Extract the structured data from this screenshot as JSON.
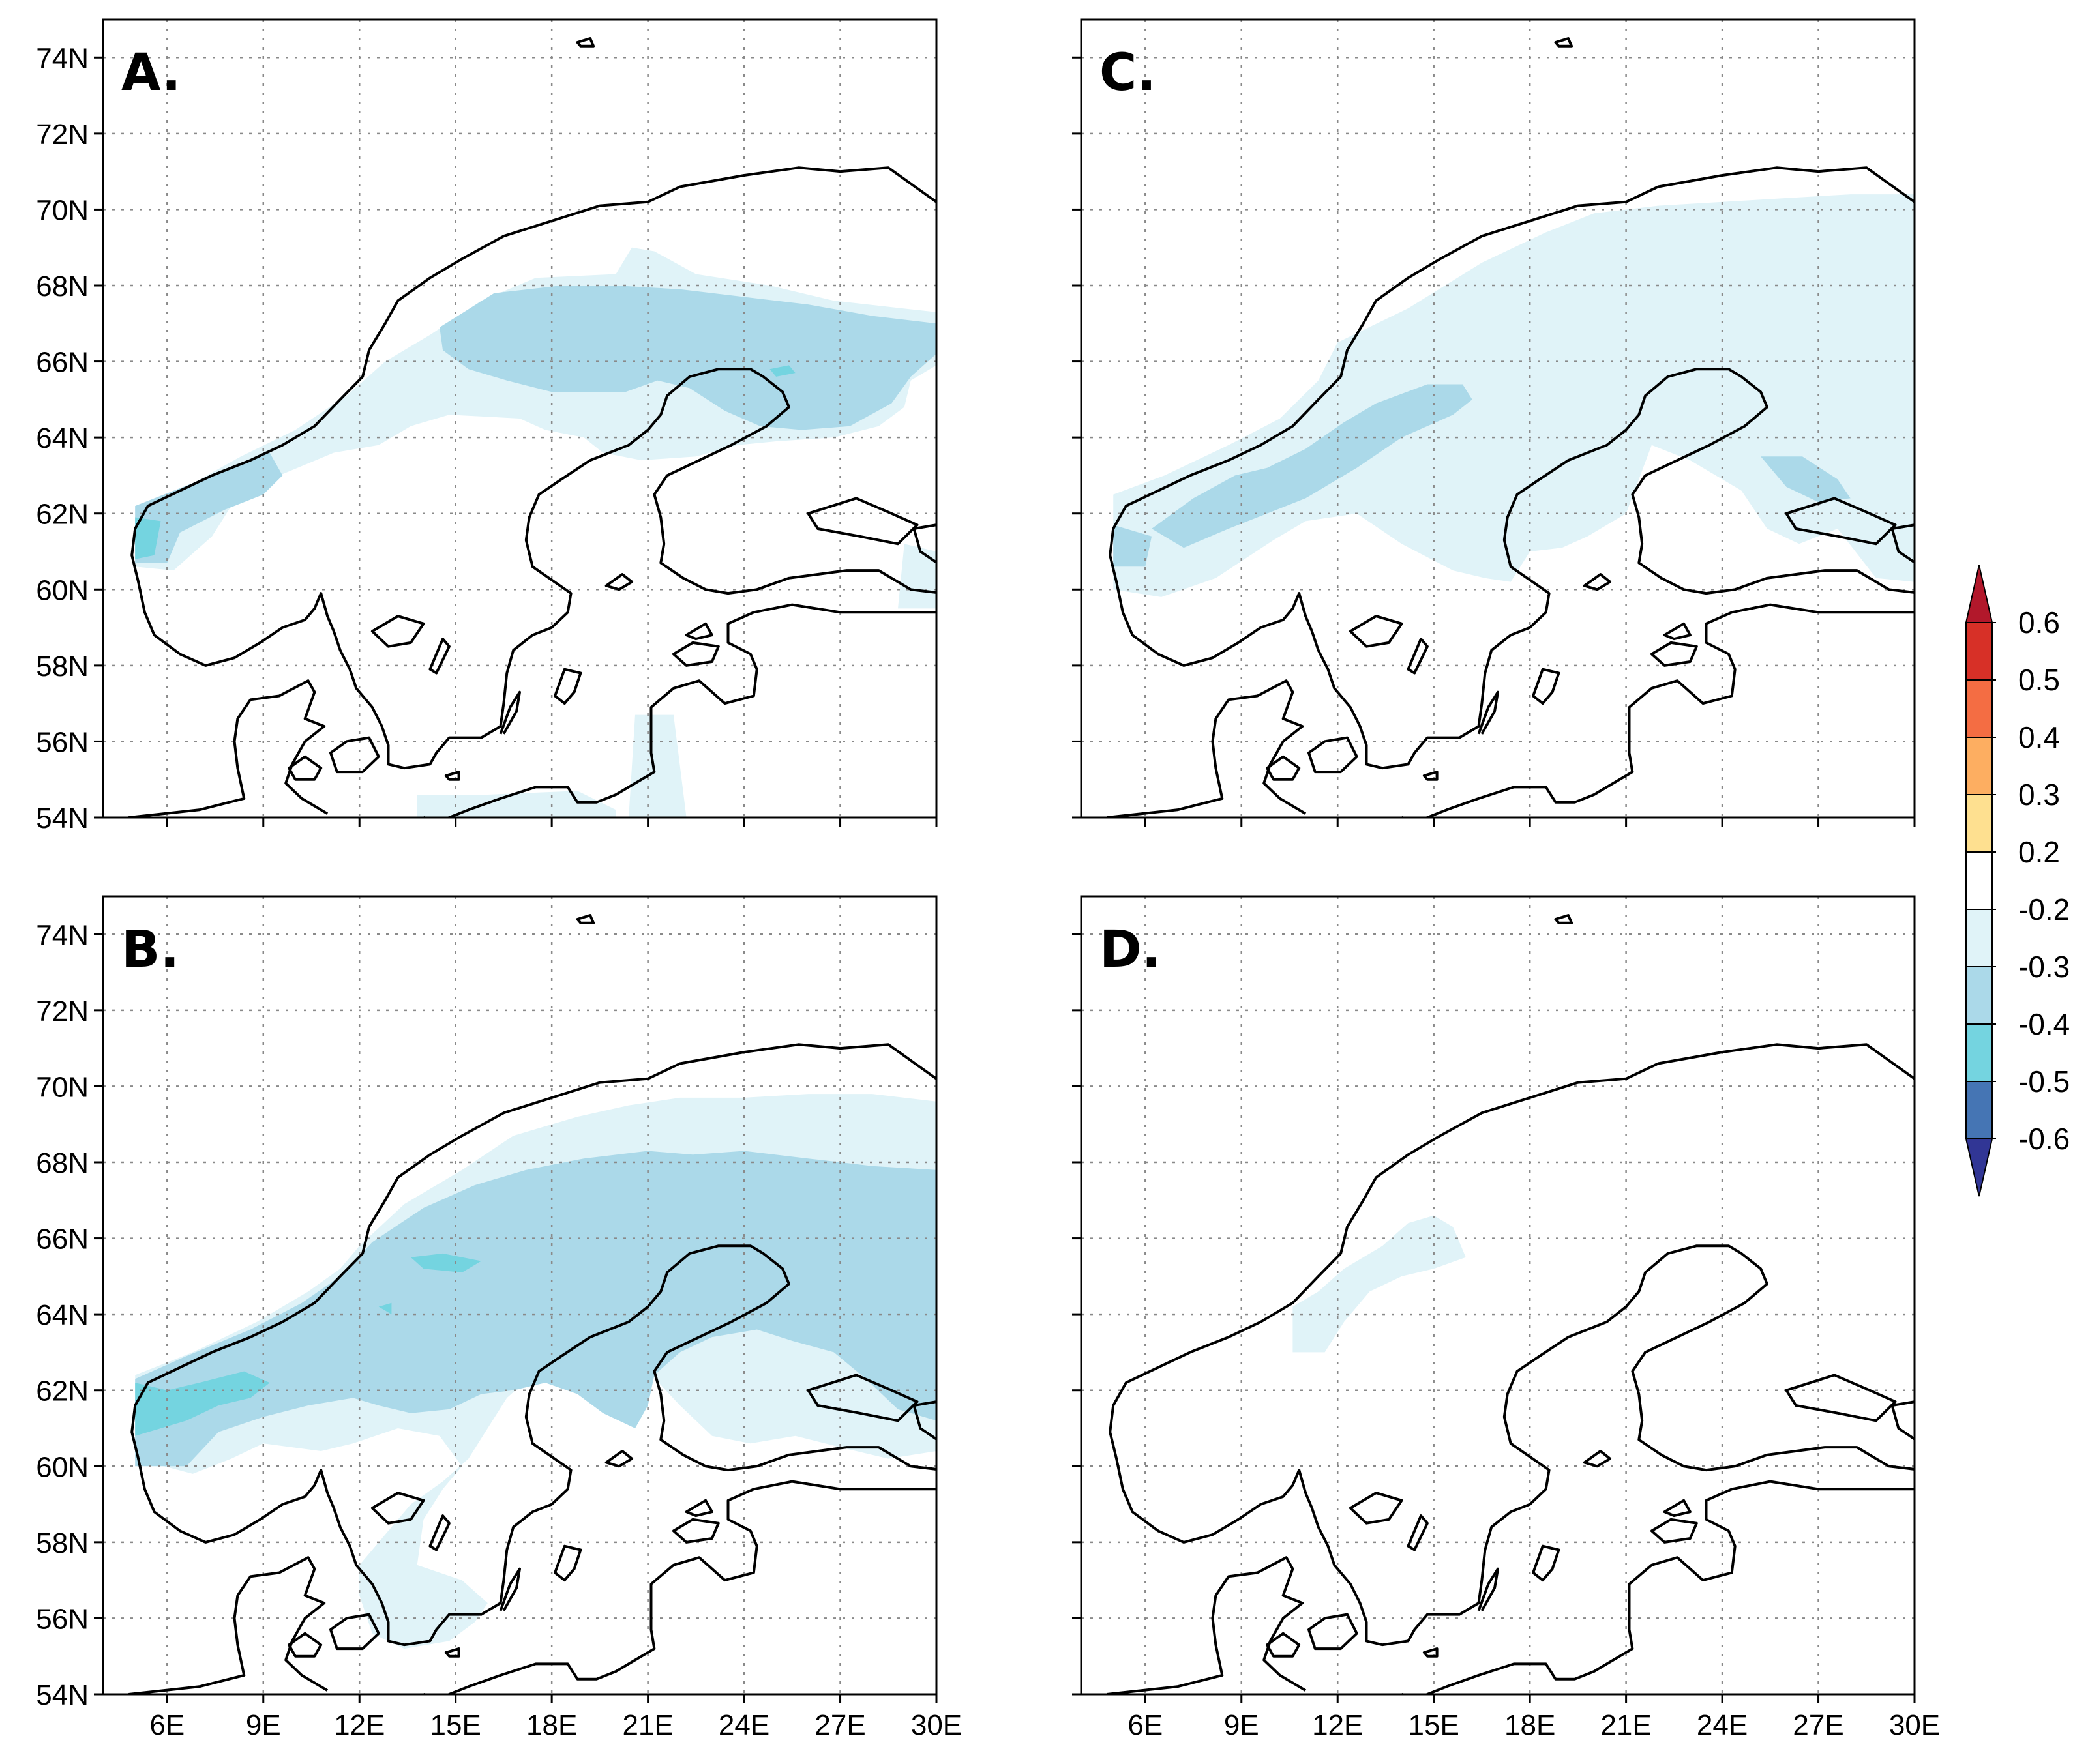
{
  "map": {
    "region": "Scandinavia / Baltic",
    "projection": "lat-lon",
    "lon_range_deg": [
      4,
      30
    ],
    "lat_range_deg": [
      54,
      75
    ],
    "lon_ticks": [
      "6E",
      "9E",
      "12E",
      "15E",
      "18E",
      "21E",
      "24E",
      "27E",
      "30E"
    ],
    "lat_ticks": [
      "54N",
      "56N",
      "58N",
      "60N",
      "62N",
      "64N",
      "66N",
      "68N",
      "70N",
      "72N",
      "74N"
    ],
    "gridlines": "dotted",
    "background_color": "#ffffff",
    "coastline_color": "#000000"
  },
  "panels": [
    {
      "id": "A",
      "label": "A.",
      "shading_level": "moderate, -0.3 to -0.4 over northern Scandinavia"
    },
    {
      "id": "C",
      "label": "C.",
      "shading_level": "weak, mostly -0.2 to -0.3"
    },
    {
      "id": "B",
      "label": "B.",
      "shading_level": "strongest, -0.3 to -0.5"
    },
    {
      "id": "D",
      "label": "D.",
      "shading_level": "very weak, small -0.2 to -0.3 patch along Norwegian coast"
    }
  ],
  "colorbar": {
    "labels": [
      "0.6",
      "0.5",
      "0.4",
      "0.3",
      "0.2",
      "-0.2",
      "-0.3",
      "-0.4",
      "-0.5",
      "-0.6"
    ],
    "colors": [
      "#b2182b",
      "#d73027",
      "#f46d43",
      "#fdae61",
      "#fee090",
      "#ffffff",
      "#e0f3f8",
      "#abd9e9",
      "#74d4e0",
      "#4575b4",
      "#313695"
    ],
    "extends": "both"
  }
}
